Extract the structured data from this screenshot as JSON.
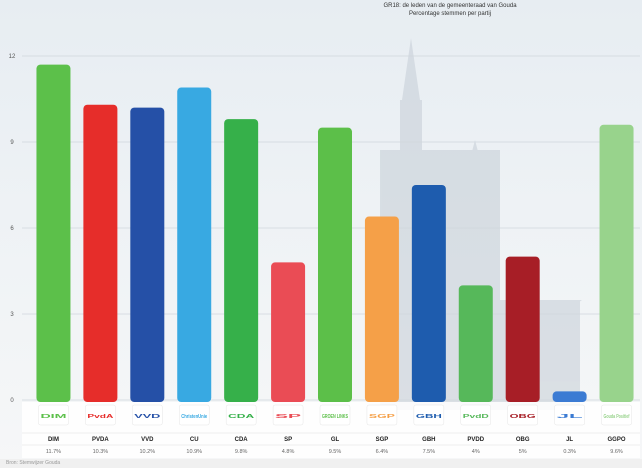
{
  "chart_data": {
    "type": "bar",
    "title": "GR18: de leden van de gemeenteraad van Gouda",
    "subtitle": "Percentage stemmen per partij",
    "ylim": [
      0,
      12
    ],
    "yticks": [
      "0",
      "3",
      "6",
      "9",
      "12"
    ],
    "grid": true,
    "categories": [
      "DIM",
      "PVDA",
      "VVD",
      "CU",
      "CDA",
      "SP",
      "GL",
      "SGP",
      "GBH",
      "PVDD",
      "OBG",
      "JL",
      "GGPO"
    ],
    "values": [
      11.7,
      10.3,
      10.2,
      10.9,
      9.8,
      4.8,
      9.5,
      6.4,
      7.5,
      4.0,
      5.0,
      0.3,
      9.6
    ],
    "value_labels": [
      "11.7%",
      "10.3%",
      "10.2%",
      "10.9%",
      "9.8%",
      "4.8%",
      "9.5%",
      "6.4%",
      "7.5%",
      "4%",
      "5%",
      "0.3%",
      "9.6%"
    ],
    "colors": [
      "#5cc04a",
      "#e62d2a",
      "#2550a7",
      "#38a9e2",
      "#36b04a",
      "#ea4c55",
      "#5cbf49",
      "#f5a048",
      "#1e5cae",
      "#56b85a",
      "#a71e26",
      "#3b7bd3",
      "#98d38c"
    ],
    "logos": [
      "DIM",
      "PvdA",
      "VVD",
      "ChristenUnie",
      "CDA",
      "SP",
      "GROEN LINKS",
      "SGP",
      "GBH",
      "PvdD",
      "OBG",
      "JL",
      "Gouda Positief"
    ]
  },
  "footer": {
    "source": "Bron: Stemwijzer Gouda"
  }
}
